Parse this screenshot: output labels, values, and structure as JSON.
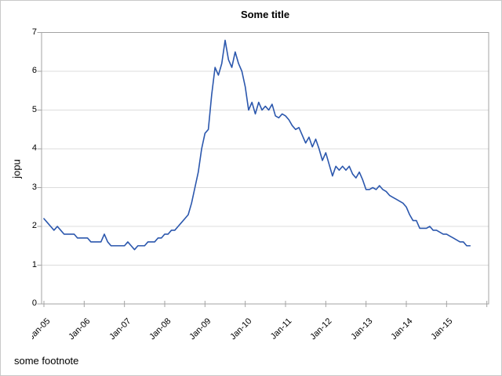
{
  "chart_data": {
    "type": "line",
    "title": "Some title",
    "ylabel": "jopu",
    "footnote": "some footnote",
    "x_tick_labels": [
      "Jan-05",
      "Jan-06",
      "Jan-07",
      "Jan-08",
      "Jan-09",
      "Jan-10",
      "Jan-11",
      "Jan-12",
      "Jan-13",
      "Jan-14",
      "Jan-15"
    ],
    "y_tick_labels": [
      "0",
      "1",
      "2",
      "3",
      "4",
      "5",
      "6",
      "7"
    ],
    "ylim": [
      0,
      7
    ],
    "grid": "horizontal-only",
    "legend": "none",
    "frequency": "monthly",
    "x_start": "Jan-2005",
    "x_end": "Aug-2015",
    "line_color": "#2b57ad",
    "axis_color": "#a3a3a3",
    "gridline_color": "#dcdcdc",
    "series": [
      {
        "name": "jopu",
        "values": [
          2.2,
          2.1,
          2.0,
          1.9,
          2.0,
          1.9,
          1.8,
          1.8,
          1.8,
          1.8,
          1.7,
          1.7,
          1.7,
          1.7,
          1.6,
          1.6,
          1.6,
          1.6,
          1.8,
          1.6,
          1.5,
          1.5,
          1.5,
          1.5,
          1.5,
          1.6,
          1.5,
          1.4,
          1.5,
          1.5,
          1.5,
          1.6,
          1.6,
          1.6,
          1.7,
          1.7,
          1.8,
          1.8,
          1.9,
          1.9,
          2.0,
          2.1,
          2.2,
          2.3,
          2.6,
          3.0,
          3.4,
          4.0,
          4.4,
          4.5,
          5.4,
          6.1,
          5.9,
          6.2,
          6.8,
          6.3,
          6.1,
          6.5,
          6.2,
          6.0,
          5.6,
          5.0,
          5.2,
          4.9,
          5.2,
          5.0,
          5.1,
          5.0,
          5.15,
          4.85,
          4.8,
          4.9,
          4.85,
          4.75,
          4.6,
          4.5,
          4.55,
          4.35,
          4.15,
          4.3,
          4.05,
          4.25,
          4.0,
          3.7,
          3.9,
          3.6,
          3.3,
          3.55,
          3.45,
          3.55,
          3.45,
          3.55,
          3.35,
          3.25,
          3.4,
          3.2,
          2.95,
          2.95,
          3.0,
          2.95,
          3.05,
          2.95,
          2.9,
          2.8,
          2.75,
          2.7,
          2.65,
          2.6,
          2.5,
          2.3,
          2.15,
          2.15,
          1.95,
          1.95,
          1.95,
          2.0,
          1.9,
          1.9,
          1.85,
          1.8,
          1.8,
          1.75,
          1.7,
          1.65,
          1.6,
          1.6,
          1.5,
          1.5
        ]
      }
    ]
  }
}
